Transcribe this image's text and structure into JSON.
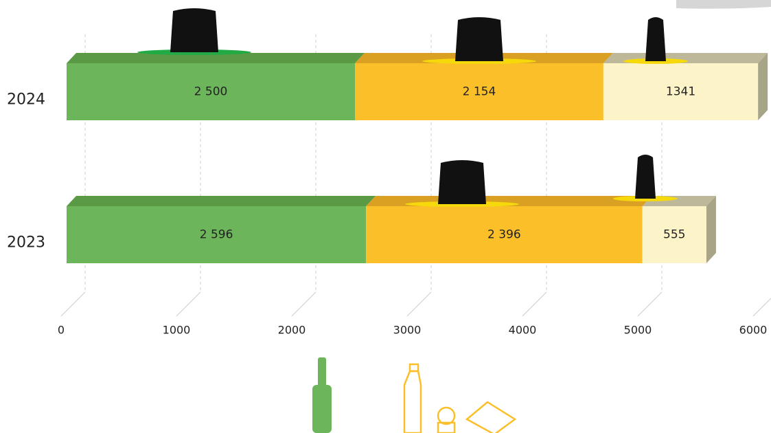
{
  "chart_data": {
    "type": "bar",
    "orientation": "horizontal",
    "stacked": true,
    "categories": [
      "2024",
      "2023"
    ],
    "series": [
      {
        "color": "#6db55a",
        "values": [
          2500,
          2596
        ],
        "value_labels": [
          "2 500",
          "2 596"
        ]
      },
      {
        "color": "#fbbf2a",
        "values": [
          2154,
          2396
        ],
        "value_labels": [
          "2 154",
          "2 396"
        ]
      },
      {
        "color": "#fdf3c8",
        "values": [
          1341,
          555
        ],
        "value_labels": [
          "1341",
          "555"
        ]
      }
    ],
    "xlim": [
      0,
      6000
    ],
    "xticks": [
      0,
      1000,
      2000,
      3000,
      4000,
      5000,
      6000
    ],
    "grid": true
  }
}
